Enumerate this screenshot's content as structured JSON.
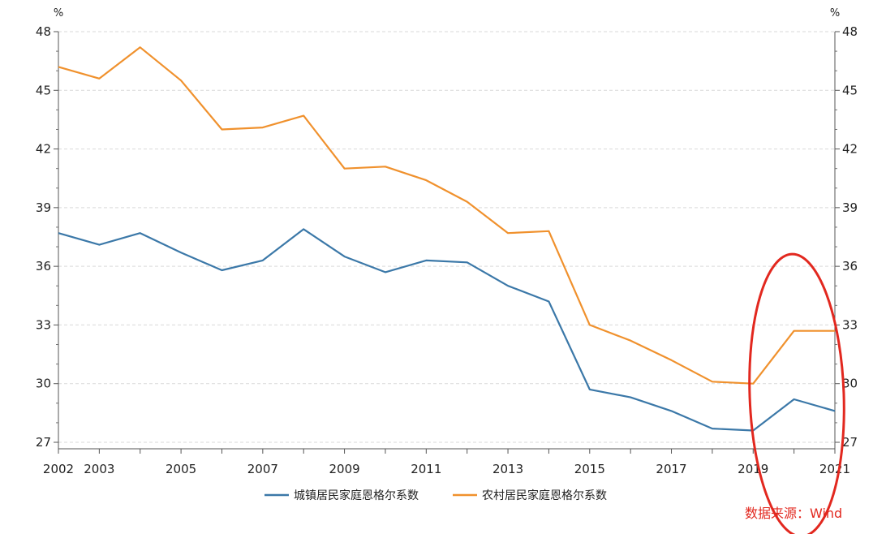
{
  "chart_data": {
    "type": "line",
    "x": [
      2002,
      2003,
      2004,
      2005,
      2006,
      2007,
      2008,
      2009,
      2010,
      2011,
      2012,
      2013,
      2014,
      2015,
      2016,
      2017,
      2018,
      2019,
      2020,
      2021
    ],
    "x_tick_labels": [
      "2002",
      "2003",
      "2005",
      "2007",
      "2009",
      "2011",
      "2013",
      "2015",
      "2017",
      "2019",
      "2021"
    ],
    "y_tick_labels": [
      "27",
      "30",
      "33",
      "36",
      "39",
      "42",
      "45",
      "48"
    ],
    "ylim": [
      27,
      48
    ],
    "y_unit_left": "%",
    "y_unit_right": "%",
    "grid": true,
    "legend_position": "bottom",
    "series": [
      {
        "name": "城镇居民家庭恩格尔系数",
        "color": "#3b78a8",
        "values": [
          37.7,
          37.1,
          37.7,
          36.7,
          35.8,
          36.3,
          37.9,
          36.5,
          35.7,
          36.3,
          36.2,
          35.0,
          34.2,
          29.7,
          29.3,
          28.6,
          27.7,
          27.6,
          29.2,
          28.6
        ]
      },
      {
        "name": "农村居民家庭恩格尔系数",
        "color": "#f0912d",
        "values": [
          46.2,
          45.6,
          47.2,
          45.5,
          43.0,
          43.1,
          43.7,
          41.0,
          41.1,
          40.4,
          39.3,
          37.7,
          37.8,
          33.0,
          32.2,
          31.2,
          30.1,
          30.0,
          32.7,
          32.7
        ]
      }
    ],
    "annotation": {
      "source_text": "数据来源：Wind",
      "source_color": "#e2281f",
      "highlight_color": "#e2281f"
    }
  }
}
